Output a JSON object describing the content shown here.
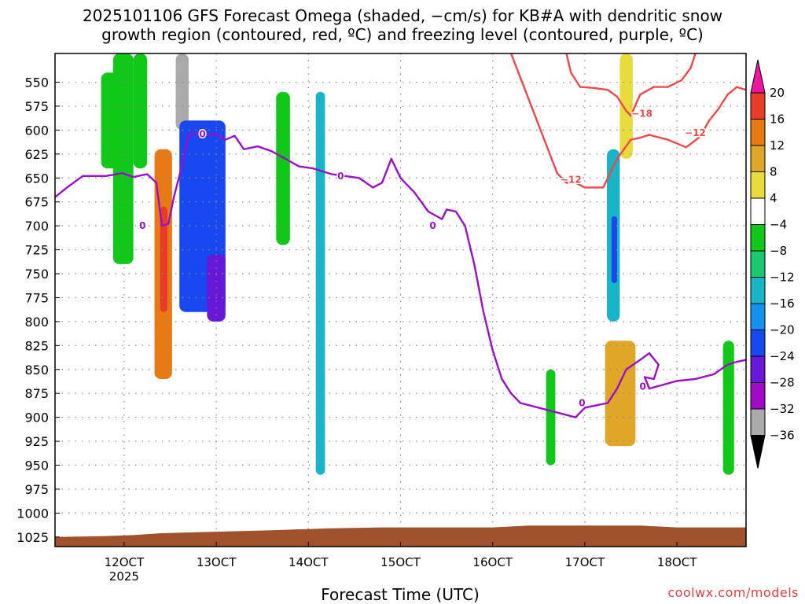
{
  "title_line1": "2025101106 GFS Forecast Omega (shaded, −cm/s) for KB#A with dendritic snow",
  "title_line2": "growth region (contoured, red, ºC) and freezing level (contoured, purple, ºC)",
  "x_axis_label": "Forecast Time (UTC)",
  "credit": "coolwx.com/models",
  "colors": {
    "freezing_level": "#9a10c8",
    "dgz_contour": "#f04848",
    "ground": "#a0522d",
    "grid": "#888888"
  },
  "chart_data": {
    "type": "heatmap",
    "y_scale": "pressure (hPa, inverted)",
    "ylim": [
      1035,
      520
    ],
    "xlim": [
      112.5,
      187.5
    ],
    "x_ticks": [
      {
        "v": 120,
        "label": "12OCT"
      },
      {
        "v": 130,
        "label": "13OCT"
      },
      {
        "v": 140,
        "label": "14OCT"
      },
      {
        "v": 150,
        "label": "15OCT"
      },
      {
        "v": 160,
        "label": "16OCT"
      },
      {
        "v": 170,
        "label": "17OCT"
      },
      {
        "v": 180,
        "label": "18OCT"
      }
    ],
    "x_year_label": "2025",
    "y_ticks": [
      550,
      575,
      600,
      625,
      650,
      675,
      700,
      725,
      750,
      775,
      800,
      825,
      850,
      875,
      900,
      925,
      950,
      975,
      1000,
      1025
    ],
    "colorbar": {
      "levels": [
        20,
        16,
        12,
        8,
        4,
        -4,
        -8,
        -12,
        -16,
        -20,
        -24,
        -28,
        -32,
        -36
      ],
      "colors": [
        "#f0149c",
        "#e83c28",
        "#e87a14",
        "#e0a628",
        "#e8dc3c",
        "#ffffff",
        "#10c818",
        "#18c870",
        "#18b4c8",
        "#1490f0",
        "#1848f0",
        "#6818d8",
        "#a00ac8",
        "#aaaaaa",
        "#000000"
      ]
    },
    "shaded_features": [
      {
        "x": [
          117.5,
          119.5
        ],
        "p": [
          540,
          640
        ],
        "value": -6
      },
      {
        "x": [
          118.8,
          121.0
        ],
        "p": [
          520,
          740
        ],
        "value": -5
      },
      {
        "x": [
          121.0,
          122.5
        ],
        "p": [
          520,
          640
        ],
        "value": -5
      },
      {
        "x": [
          123.3,
          125.2
        ],
        "p": [
          620,
          860
        ],
        "value": 14
      },
      {
        "x": [
          123.9,
          124.7
        ],
        "p": [
          680,
          790
        ],
        "value": 18
      },
      {
        "x": [
          125.6,
          127.0
        ],
        "p": [
          520,
          600
        ],
        "value": -34
      },
      {
        "x": [
          126.0,
          131.0
        ],
        "p": [
          590,
          790
        ],
        "value": -22
      },
      {
        "x": [
          129.0,
          131.0
        ],
        "p": [
          730,
          800
        ],
        "value": -28
      },
      {
        "x": [
          136.5,
          138.0
        ],
        "p": [
          560,
          720
        ],
        "value": -6
      },
      {
        "x": [
          140.8,
          141.8
        ],
        "p": [
          560,
          960
        ],
        "value": -14
      },
      {
        "x": [
          172.4,
          173.8
        ],
        "p": [
          620,
          800
        ],
        "value": -14
      },
      {
        "x": [
          172.9,
          173.5
        ],
        "p": [
          690,
          760
        ],
        "value": -24
      },
      {
        "x": [
          172.2,
          175.5
        ],
        "p": [
          820,
          930
        ],
        "value": 10
      },
      {
        "x": [
          173.8,
          175.2
        ],
        "p": [
          520,
          630
        ],
        "value": 6
      },
      {
        "x": [
          165.8,
          166.8
        ],
        "p": [
          850,
          950
        ],
        "value": -6
      },
      {
        "x": [
          185.0,
          186.2
        ],
        "p": [
          820,
          960
        ],
        "value": -6
      }
    ],
    "series": [
      {
        "name": "0",
        "contour": "freezing level",
        "points": [
          [
            112.5,
            670
          ],
          [
            113.8,
            660
          ],
          [
            115.5,
            648
          ],
          [
            118,
            648
          ],
          [
            119.8,
            645
          ],
          [
            121,
            649
          ],
          [
            122.5,
            646
          ],
          [
            123.5,
            655
          ],
          [
            124.1,
            700
          ],
          [
            124.8,
            698
          ],
          [
            125.4,
            670
          ],
          [
            126.2,
            640
          ],
          [
            127.0,
            605
          ],
          [
            128,
            603
          ],
          [
            129,
            604
          ],
          [
            130,
            604
          ],
          [
            131,
            610
          ],
          [
            132,
            606
          ],
          [
            133,
            620
          ],
          [
            134.5,
            617
          ],
          [
            136,
            622
          ],
          [
            137.5,
            630
          ],
          [
            139,
            638
          ],
          [
            140.5,
            640
          ],
          [
            142.5,
            646
          ],
          [
            144,
            648
          ],
          [
            145.5,
            650
          ],
          [
            147,
            660
          ],
          [
            148,
            655
          ],
          [
            149,
            630
          ],
          [
            150,
            650
          ],
          [
            151.5,
            665
          ],
          [
            153,
            685
          ],
          [
            154.5,
            693
          ],
          [
            155,
            683
          ],
          [
            156,
            685
          ],
          [
            157,
            700
          ],
          [
            158,
            740
          ],
          [
            159,
            790
          ],
          [
            160,
            830
          ],
          [
            161,
            860
          ],
          [
            162,
            875
          ],
          [
            163,
            885
          ],
          [
            165,
            890
          ],
          [
            167,
            895
          ],
          [
            169,
            900
          ],
          [
            170,
            890
          ],
          [
            172.5,
            885
          ],
          [
            173.5,
            870
          ],
          [
            174.5,
            850
          ],
          [
            176,
            840
          ],
          [
            177,
            833
          ],
          [
            178,
            845
          ],
          [
            177.5,
            860
          ],
          [
            176.5,
            858
          ],
          [
            177,
            870
          ],
          [
            178.5,
            866
          ],
          [
            180,
            862
          ],
          [
            182,
            860
          ],
          [
            184,
            855
          ],
          [
            185.5,
            845
          ],
          [
            186.5,
            842
          ],
          [
            187.5,
            840
          ]
        ],
        "labels": [
          [
            128.5,
            604
          ],
          [
            122.0,
            700
          ],
          [
            143.5,
            648
          ],
          [
            153.5,
            700
          ],
          [
            169.7,
            885
          ],
          [
            176.3,
            868
          ]
        ]
      },
      {
        "name": "-12",
        "contour": "dendritic snow growth region",
        "points": [
          [
            162,
            520
          ],
          [
            163,
            545
          ],
          [
            164,
            570
          ],
          [
            165,
            595
          ],
          [
            166,
            620
          ],
          [
            167,
            645
          ],
          [
            168,
            655
          ],
          [
            169,
            655
          ],
          [
            170,
            660
          ],
          [
            171,
            660
          ],
          [
            172,
            660
          ],
          [
            172.5,
            650
          ],
          [
            173.5,
            630
          ],
          [
            175,
            610
          ],
          [
            176,
            608
          ],
          [
            177,
            605
          ],
          [
            179,
            610
          ],
          [
            181,
            618
          ],
          [
            182.5,
            607
          ],
          [
            183.5,
            590
          ],
          [
            184.5,
            578
          ],
          [
            185.5,
            563
          ],
          [
            186.5,
            555
          ],
          [
            187.5,
            558
          ]
        ],
        "labels": [
          [
            168.5,
            652
          ],
          [
            182.0,
            603
          ]
        ]
      },
      {
        "name": "-18",
        "contour": "dendritic snow growth region",
        "points": [
          [
            168,
            520
          ],
          [
            168.5,
            540
          ],
          [
            169.5,
            555
          ],
          [
            171,
            556
          ],
          [
            172.5,
            558
          ],
          [
            173.5,
            565
          ],
          [
            174.5,
            580
          ],
          [
            175,
            585
          ],
          [
            176,
            563
          ],
          [
            177.5,
            555
          ],
          [
            179,
            555
          ],
          [
            180.5,
            548
          ],
          [
            181.5,
            535
          ],
          [
            182,
            520
          ]
        ],
        "labels": [
          [
            176.2,
            583
          ]
        ]
      }
    ],
    "ground": [
      [
        112.5,
        1025
      ],
      [
        118,
        1024
      ],
      [
        121,
        1023
      ],
      [
        124,
        1021
      ],
      [
        128,
        1020
      ],
      [
        136,
        1018
      ],
      [
        142,
        1016
      ],
      [
        148,
        1015
      ],
      [
        160,
        1015
      ],
      [
        164,
        1013
      ],
      [
        176,
        1013
      ],
      [
        180,
        1015
      ],
      [
        187.5,
        1015
      ]
    ]
  }
}
